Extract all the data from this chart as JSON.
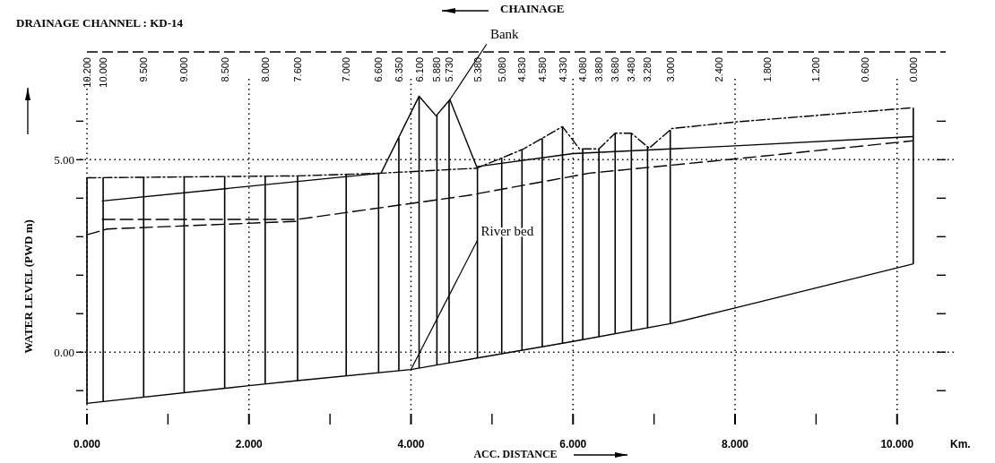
{
  "chart_data": {
    "type": "line",
    "title": "DRAINAGE CHANNEL : KD-14",
    "xlabel": "ACC. DISTANCE",
    "x2label": "CHAINAGE",
    "ylabel": "WATER LEVEL (PWD m)",
    "xlim": [
      0,
      10.6
    ],
    "ylim": [
      -1.6,
      7.8
    ],
    "x2lim": [
      10.2,
      -0.4
    ],
    "xticks": [
      {
        "value": 0,
        "label": "0.000"
      },
      {
        "value": 1,
        "label": null
      },
      {
        "value": 2,
        "label": "2.000"
      },
      {
        "value": 3,
        "label": null
      },
      {
        "value": 4,
        "label": "4.000"
      },
      {
        "value": 5,
        "label": null
      },
      {
        "value": 6,
        "label": "6.000"
      },
      {
        "value": 7,
        "label": null
      },
      {
        "value": 8,
        "label": "8.000"
      },
      {
        "value": 9,
        "label": null
      },
      {
        "value": 10,
        "label": "10.000"
      }
    ],
    "yticks": [
      {
        "value": -1,
        "label": null
      },
      {
        "value": 0,
        "label": "0.00"
      },
      {
        "value": 1,
        "label": null
      },
      {
        "value": 2,
        "label": null
      },
      {
        "value": 3,
        "label": null
      },
      {
        "value": 4,
        "label": null
      },
      {
        "value": 5,
        "label": "5.00"
      },
      {
        "value": 6,
        "label": null
      }
    ],
    "x2ticks": [
      {
        "value": 10.2,
        "label": "10.200"
      },
      {
        "value": 10,
        "label": "10.000"
      },
      {
        "value": 9.5,
        "label": "9.500"
      },
      {
        "value": 9,
        "label": "9.000"
      },
      {
        "value": 8.5,
        "label": "8.500"
      },
      {
        "value": 8,
        "label": "8.000"
      },
      {
        "value": 7.6,
        "label": "7.600"
      },
      {
        "value": 7,
        "label": "7.000"
      },
      {
        "value": 6.6,
        "label": "6.600"
      },
      {
        "value": 6.35,
        "label": "6.350"
      },
      {
        "value": 6.1,
        "label": "6.100"
      },
      {
        "value": 5.88,
        "label": "5.880"
      },
      {
        "value": 5.73,
        "label": "5.730"
      },
      {
        "value": 5.38,
        "label": "5.380"
      },
      {
        "value": 5.08,
        "label": "5.080"
      },
      {
        "value": 4.83,
        "label": "4.830"
      },
      {
        "value": 4.58,
        "label": "4.580"
      },
      {
        "value": 4.33,
        "label": "4.330"
      },
      {
        "value": 4.08,
        "label": "4.080"
      },
      {
        "value": 3.88,
        "label": "3.880"
      },
      {
        "value": 3.68,
        "label": "3.680"
      },
      {
        "value": 3.48,
        "label": "3.480"
      },
      {
        "value": 3.28,
        "label": "3.280"
      },
      {
        "value": 3,
        "label": "3.000"
      },
      {
        "value": 2.4,
        "label": "2.400"
      },
      {
        "value": 1.8,
        "label": "1.800"
      },
      {
        "value": 1.2,
        "label": "1.200"
      },
      {
        "value": 0.6,
        "label": "0.600"
      },
      {
        "value": 0,
        "label": "0.000"
      }
    ],
    "grid": true,
    "series": [
      {
        "color": "#000000",
        "line_style": "solid",
        "x": [
          0,
          2,
          2.6,
          4,
          6,
          7.2,
          8,
          10.19
        ],
        "values": [
          -1.33,
          -0.87,
          -0.74,
          -0.45,
          0.28,
          0.74,
          1.15,
          2.29
        ]
      },
      {
        "color": "#000000",
        "line_style": "solid",
        "x": [
          0.19,
          3.63,
          4.1,
          4.31,
          4.48,
          4.81,
          6,
          8,
          10.19
        ],
        "values": [
          3.93,
          4.65,
          6.65,
          6.14,
          6.56,
          4.82,
          5.16,
          5.36,
          5.6
        ]
      },
      {
        "color": "#000000",
        "line_style": "dotted",
        "x": [
          0,
          2.6,
          3.63,
          4.81,
          5.38,
          5.87,
          6.08,
          6.32,
          6.52,
          6.72,
          6.94,
          7.22,
          8,
          10.19
        ],
        "values": [
          4.53,
          4.58,
          4.65,
          4.78,
          5.27,
          5.86,
          5.28,
          5.28,
          5.69,
          5.69,
          5.3,
          5.81,
          5.98,
          6.35
        ]
      },
      {
        "color": "#000000",
        "line_style": "dashed",
        "x": [
          0.19,
          2.6,
          4.7,
          6.2,
          8,
          10.19
        ],
        "values": [
          3.45,
          3.45,
          4.07,
          4.65,
          5.02,
          5.49
        ]
      },
      {
        "color": "#000000",
        "line_style": "dashed",
        "x": [
          0,
          0.25,
          2.6
        ],
        "values": [
          3.05,
          3.2,
          3.4
        ]
      },
      {
        "type": "bar",
        "color": "#000000",
        "x": [
          0,
          0.2,
          0.7,
          1.2,
          1.7,
          2.2,
          2.6,
          3.2,
          3.6,
          3.85,
          4.1,
          4.32,
          4.47,
          4.82,
          5.12,
          5.37,
          5.62,
          5.87,
          6.12,
          6.32,
          6.52,
          6.72,
          6.92,
          7.2,
          10.2
        ],
        "base": [
          -1.33,
          -1.28,
          -1.17,
          -1.05,
          -0.94,
          -0.83,
          -0.74,
          -0.62,
          -0.53,
          -0.48,
          -0.41,
          -0.33,
          -0.28,
          -0.15,
          -0.04,
          0.05,
          0.14,
          0.23,
          0.33,
          0.4,
          0.48,
          0.56,
          0.63,
          0.74,
          2.29
        ],
        "values": [
          5.86,
          5.81,
          5.71,
          5.6,
          5.5,
          5.4,
          5.32,
          5.24,
          5.18,
          6.05,
          7.06,
          6.5,
          6.82,
          4.97,
          5.09,
          5.21,
          5.42,
          5.63,
          4.95,
          4.88,
          5.21,
          5.13,
          4.71,
          5.03,
          4.06
        ]
      }
    ],
    "annotations": [
      {
        "text": "Bank",
        "x": 4.48,
        "y": 6.56
      },
      {
        "text": "River bed",
        "x": 4,
        "y": -0.45
      },
      "Km."
    ]
  }
}
